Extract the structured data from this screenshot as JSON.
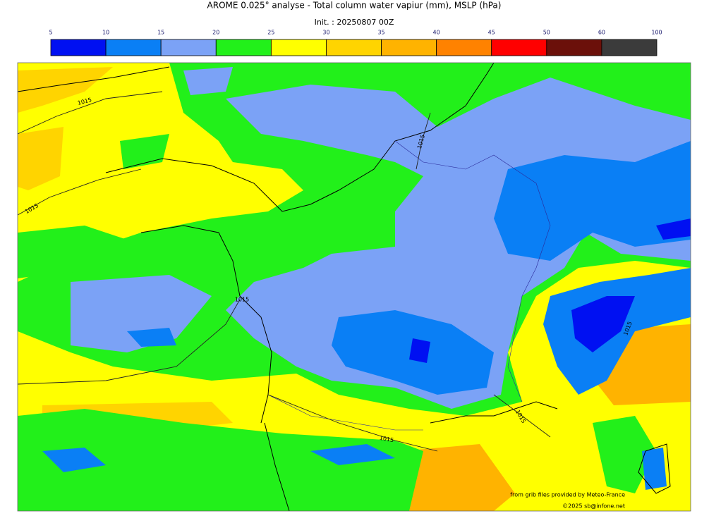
{
  "header": {
    "title": "AROME 0.025° analyse - Total column water vapiur (mm), MSLP (hPa)",
    "init": "Init. : 20250807 00Z"
  },
  "legend": {
    "ticks": [
      5,
      10,
      15,
      20,
      25,
      30,
      35,
      40,
      45,
      50,
      60,
      100
    ],
    "colors": [
      "#0010f2",
      "#0a7ff5",
      "#7ba2f6",
      "#22f01a",
      "#ffff00",
      "#ffd400",
      "#ffb300",
      "#ff8200",
      "#ff0000",
      "#6b100a",
      "#3b3b3b"
    ]
  },
  "isobar_labels": [
    "1015",
    "1015",
    "1015",
    "1015",
    "1015",
    "1015",
    "1015"
  ],
  "credits": {
    "source": "from grib files provided by Meteo-France",
    "copyright": "©2025 sb@infone.net"
  }
}
